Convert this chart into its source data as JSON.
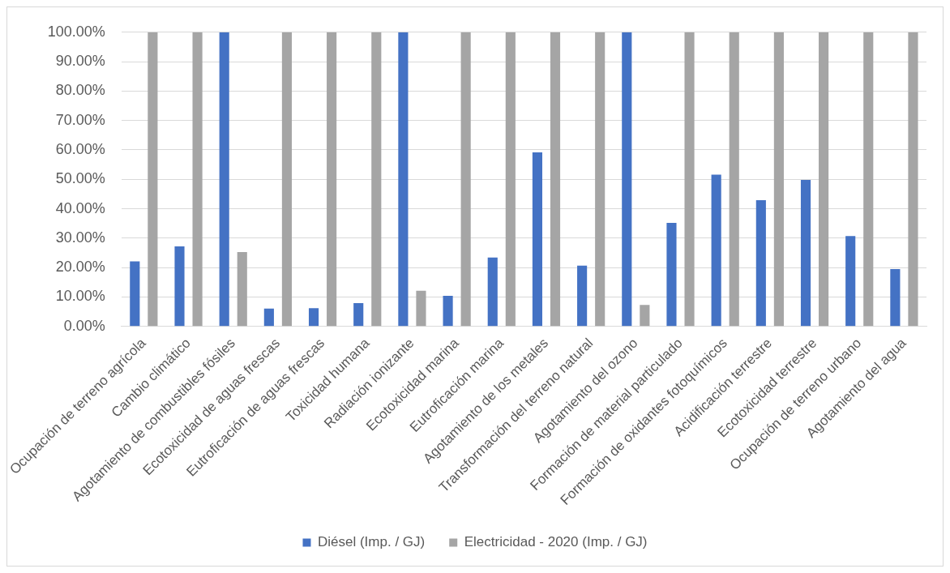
{
  "chart_data": {
    "type": "bar",
    "categories": [
      "Ocupación de terreno agrícola",
      "Cambio climático",
      "Agotamiento de combustibles fósiles",
      "Ecotoxicidad de aguas frescas",
      "Eutroficación de aguas frescas",
      "Toxicidad humana",
      "Radiación ionizante",
      "Ecotoxicidad marina",
      "Eutroficación marina",
      "Agotamiento de los metales",
      "Transformación del terreno natural",
      "Agotamiento del ozono",
      "Formación de material particulado",
      "Formación de oxidantes fotoquímicos",
      "Acidificación terrestre",
      "Ecotoxicidad terrestre",
      "Ocupación de terreno urbano",
      "Agotamiento del agua"
    ],
    "series": [
      {
        "name": "Diésel (Imp. / GJ)",
        "color": "#4472c4",
        "values": [
          22.1,
          27.2,
          100,
          6.1,
          6.2,
          7.9,
          100,
          10.4,
          23.4,
          59.2,
          20.7,
          100,
          35.2,
          51.6,
          42.9,
          49.8,
          30.7,
          19.5
        ]
      },
      {
        "name": "Electricidad - 2020 (Imp. / GJ)",
        "color": "#a5a5a5",
        "values": [
          100,
          100,
          25.3,
          100,
          100,
          100,
          12.1,
          100,
          100,
          100,
          100,
          7.3,
          100,
          100,
          100,
          100,
          100,
          100
        ]
      }
    ],
    "ylim": [
      0,
      100
    ],
    "yticks": [
      {
        "value": 0,
        "label": "0.00%"
      },
      {
        "value": 10,
        "label": "10.00%"
      },
      {
        "value": 20,
        "label": "20.00%"
      },
      {
        "value": 30,
        "label": "30.00%"
      },
      {
        "value": 40,
        "label": "40.00%"
      },
      {
        "value": 50,
        "label": "50.00%"
      },
      {
        "value": 60,
        "label": "60.00%"
      },
      {
        "value": 70,
        "label": "70.00%"
      },
      {
        "value": 80,
        "label": "80.00%"
      },
      {
        "value": 90,
        "label": "90.00%"
      },
      {
        "value": 100,
        "label": "100.00%"
      }
    ],
    "grid": "y",
    "legend": "bottom"
  }
}
